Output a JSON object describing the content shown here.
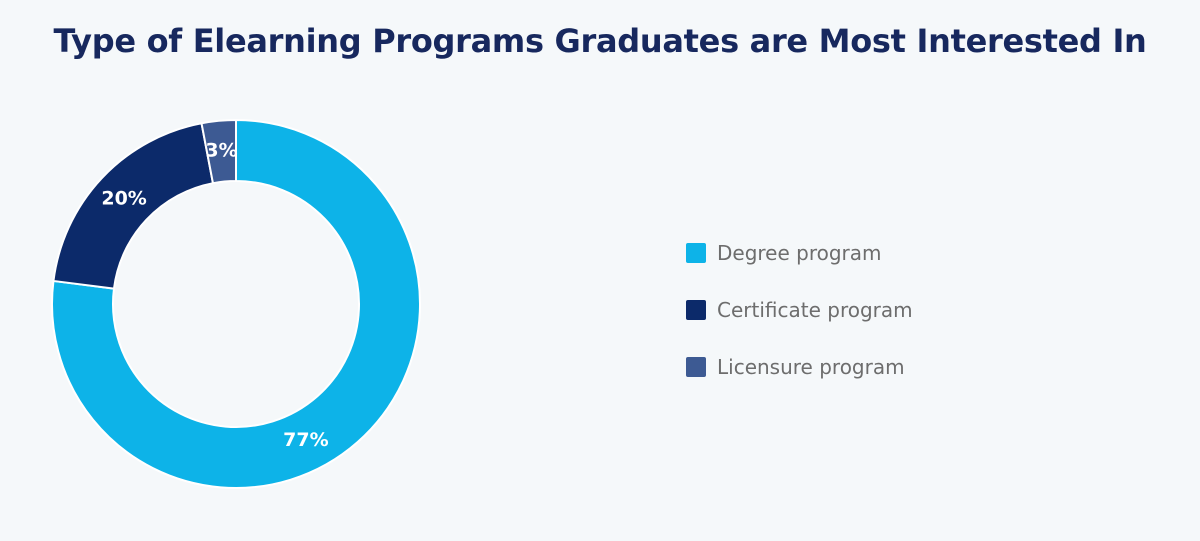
{
  "chart_data": {
    "type": "pie",
    "title": "Type of Elearning Programs Graduates are Most Interested In",
    "categories": [
      "Degree program",
      "Certificate program",
      "Licensure program"
    ],
    "values": [
      77,
      20,
      3
    ],
    "unit": "%",
    "value_labels": [
      "77%",
      "20%",
      "3%"
    ],
    "colors": [
      "#0db3e8",
      "#0c2a6a",
      "#3d5a93"
    ],
    "donut": true,
    "legend_position": "right"
  }
}
